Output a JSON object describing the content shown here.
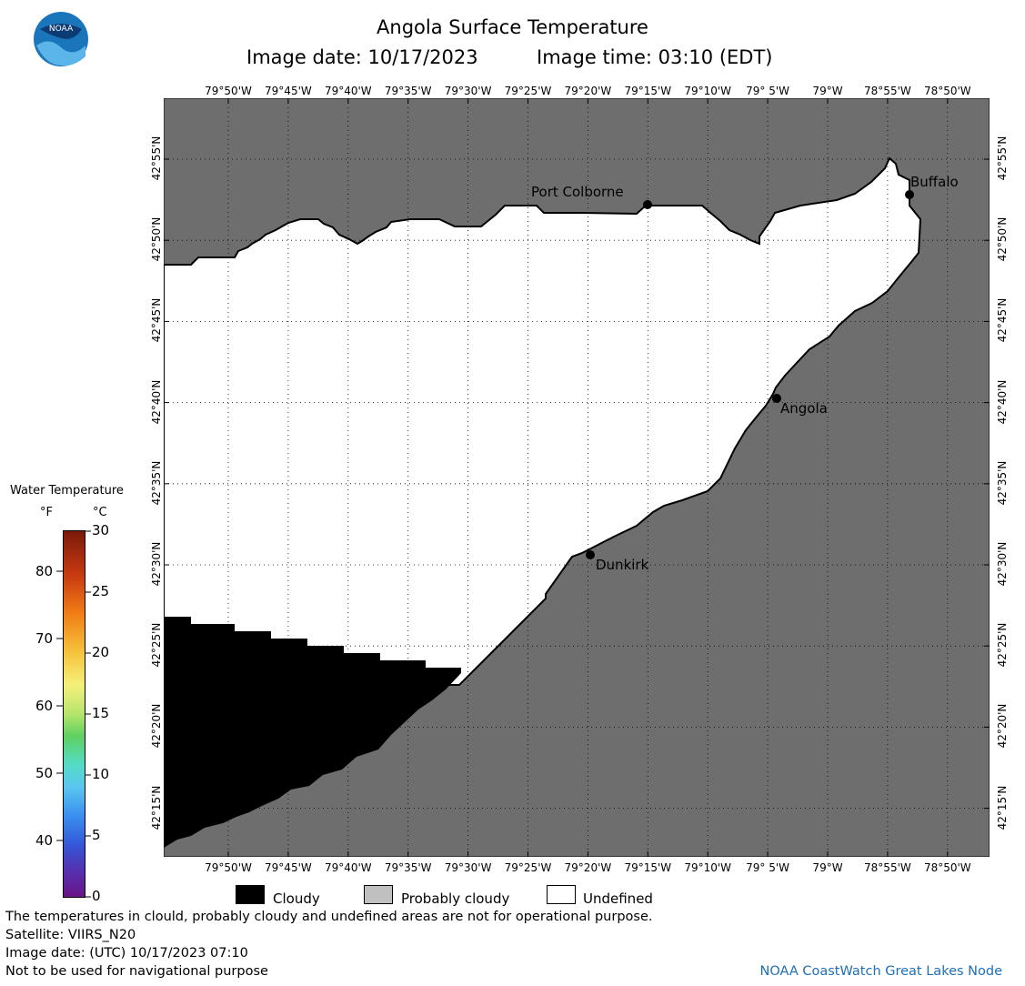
{
  "header": {
    "title": "Angola Surface Temperature",
    "image_date_label": "Image date: 10/17/2023",
    "image_time_label": "Image time: 03:10 (EDT)"
  },
  "logo": {
    "text": "NOAA"
  },
  "axes": {
    "lon_ticks": [
      "79°50'W",
      "79°45'W",
      "79°40'W",
      "79°35'W",
      "79°30'W",
      "79°25'W",
      "79°20'W",
      "79°15'W",
      "79°10'W",
      "79° 5'W",
      "79°W",
      "78°55'W",
      "78°50'W"
    ],
    "lat_ticks": [
      "42°55'N",
      "42°50'N",
      "42°45'N",
      "42°40'N",
      "42°35'N",
      "42°30'N",
      "42°25'N",
      "42°20'N",
      "42°15'N"
    ]
  },
  "places": {
    "port_colborne": "Port Colborne",
    "buffalo": "Buffalo",
    "angola": "Angola",
    "dunkirk": "Dunkirk"
  },
  "colorbar": {
    "title": "Water Temperature",
    "unit_f": "°F",
    "unit_c": "°C",
    "f_ticks": [
      "80",
      "70",
      "60",
      "50",
      "40"
    ],
    "c_ticks": [
      "30",
      "25",
      "20",
      "15",
      "10",
      "5",
      "0"
    ]
  },
  "legend": {
    "cloudy": "Cloudy",
    "probably_cloudy": "Probably cloudy",
    "undefined": "Undefined",
    "colors": {
      "cloudy": "#000000",
      "probably_cloudy": "#c0c0c0",
      "undefined": "#ffffff",
      "land": "#6e6e6e"
    }
  },
  "footer": {
    "disclaimer": "The temperatures in clould, probably cloudy and undefined areas are not for operational purpose.",
    "satellite": "Satellite: VIIRS_N20",
    "utc_date": "Image date: (UTC) 10/17/2023  07:10",
    "navigation": "Not to be used for navigational purpose",
    "credit": "NOAA CoastWatch Great Lakes Node"
  }
}
